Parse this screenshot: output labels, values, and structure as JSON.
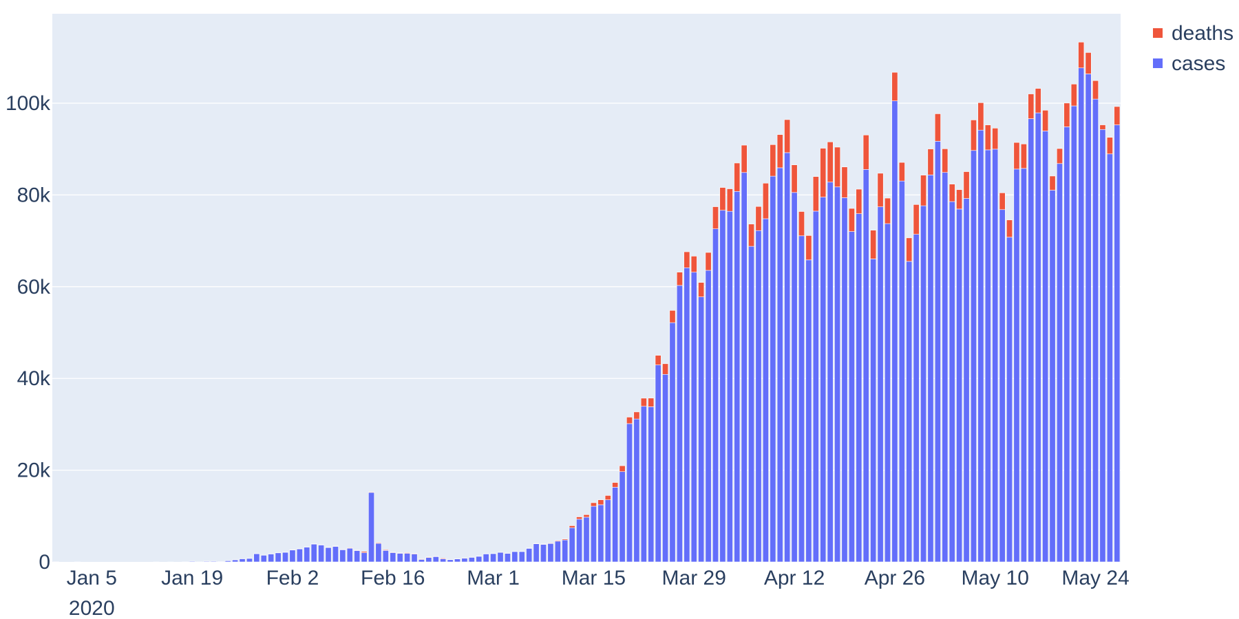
{
  "chart_data": {
    "type": "bar",
    "barmode": "stack",
    "x_start_date": "2019-12-31",
    "x_end_date": "2020-05-26",
    "series": [
      {
        "name": "cases",
        "color": "#636efa",
        "values": [
          27,
          0,
          0,
          17,
          0,
          0,
          0,
          0,
          0,
          0,
          0,
          0,
          0,
          0,
          1,
          0,
          4,
          0,
          17,
          137,
          20,
          151,
          140,
          97,
          259,
          457,
          688,
          769,
          1771,
          1459,
          1737,
          1981,
          2099,
          2589,
          2825,
          3235,
          3884,
          3694,
          3143,
          3385,
          2652,
          2984,
          2473,
          2022,
          15152,
          4050,
          2501,
          2030,
          1880,
          1878,
          1729,
          536,
          959,
          1154,
          675,
          484,
          654,
          809,
          999,
          1224,
          1748,
          1813,
          2078,
          1868,
          2261,
          2261,
          2952,
          3956,
          3828,
          4011,
          4521,
          4788,
          7456,
          9315,
          9758,
          12141,
          12457,
          13537,
          16277,
          19683,
          30151,
          31159,
          33924,
          33822,
          42941,
          40891,
          52158,
          60278,
          64128,
          63159,
          57772,
          63566,
          72614,
          76656,
          76436,
          80772,
          84898,
          68804,
          72234,
          74817,
          84098,
          85923,
          89221,
          80543,
          71098,
          65844,
          76476,
          79527,
          82800,
          81750,
          79401,
          72033,
          75917,
          85555,
          66053,
          77409,
          73749,
          100508,
          83041,
          65525,
          71421,
          77641,
          84366,
          91708,
          84906,
          78551,
          76933,
          79233,
          89699,
          94129,
          89824,
          89981,
          76805,
          70789,
          85639,
          85788,
          96624,
          97897,
          93937,
          81034,
          86847,
          94849,
          99408,
          107695,
          106393,
          100893,
          94269,
          88947,
          95279
        ]
      },
      {
        "name": "deaths",
        "color": "#ef553b",
        "values": [
          0,
          0,
          0,
          0,
          0,
          0,
          0,
          0,
          0,
          0,
          0,
          0,
          0,
          0,
          0,
          0,
          0,
          0,
          0,
          0,
          0,
          9,
          0,
          0,
          16,
          15,
          24,
          26,
          26,
          38,
          43,
          46,
          45,
          57,
          64,
          66,
          73,
          73,
          86,
          89,
          97,
          108,
          97,
          254,
          121,
          143,
          142,
          106,
          98,
          139,
          115,
          118,
          109,
          97,
          150,
          71,
          52,
          29,
          44,
          47,
          35,
          42,
          31,
          38,
          31,
          30,
          79,
          62,
          94,
          110,
          150,
          207,
          433,
          505,
          544,
          763,
          1081,
          944,
          1035,
          1286,
          1417,
          1541,
          1772,
          1891,
          2097,
          2318,
          2672,
          2893,
          3485,
          3498,
          3152,
          3902,
          4822,
          4972,
          4902,
          6191,
          5955,
          4850,
          5253,
          7751,
          6869,
          7240,
          7199,
          6018,
          5290,
          5310,
          7530,
          10656,
          8765,
          8674,
          6701,
          5030,
          5343,
          7511,
          6260,
          7321,
          5564,
          6228,
          4055,
          5118,
          6487,
          6681,
          5661,
          5988,
          5156,
          3812,
          4222,
          5849,
          6648,
          5979,
          5442,
          4583,
          3658,
          3765,
          5804,
          5324,
          5398,
          5328,
          4532,
          3092,
          3267,
          5185,
          4761,
          5621,
          4654,
          4030,
          1008,
          3614,
          3991
        ]
      }
    ],
    "x_ticks": [
      {
        "label": "Jan 5",
        "sublabel": "2020",
        "date": "2020-01-05"
      },
      {
        "label": "Jan 19",
        "date": "2020-01-19"
      },
      {
        "label": "Feb 2",
        "date": "2020-02-02"
      },
      {
        "label": "Feb 16",
        "date": "2020-02-16"
      },
      {
        "label": "Mar 1",
        "date": "2020-03-01"
      },
      {
        "label": "Mar 15",
        "date": "2020-03-15"
      },
      {
        "label": "Mar 29",
        "date": "2020-03-29"
      },
      {
        "label": "Apr 12",
        "date": "2020-04-12"
      },
      {
        "label": "Apr 26",
        "date": "2020-04-26"
      },
      {
        "label": "May 10",
        "date": "2020-05-10"
      },
      {
        "label": "May 24",
        "date": "2020-05-24"
      }
    ],
    "y_ticks": [
      {
        "label": "0",
        "value": 0
      },
      {
        "label": "20k",
        "value": 20000
      },
      {
        "label": "40k",
        "value": 40000
      },
      {
        "label": "60k",
        "value": 60000
      },
      {
        "label": "80k",
        "value": 80000
      },
      {
        "label": "100k",
        "value": 100000
      }
    ],
    "ylim": [
      0,
      119500
    ],
    "grid": true,
    "legend": {
      "position": "top-right",
      "entries": [
        {
          "name": "deaths",
          "color": "#ef553b"
        },
        {
          "name": "cases",
          "color": "#636efa"
        }
      ]
    },
    "plot_bgcolor": "#e5ecf6",
    "title": "",
    "xlabel": "",
    "ylabel": ""
  }
}
